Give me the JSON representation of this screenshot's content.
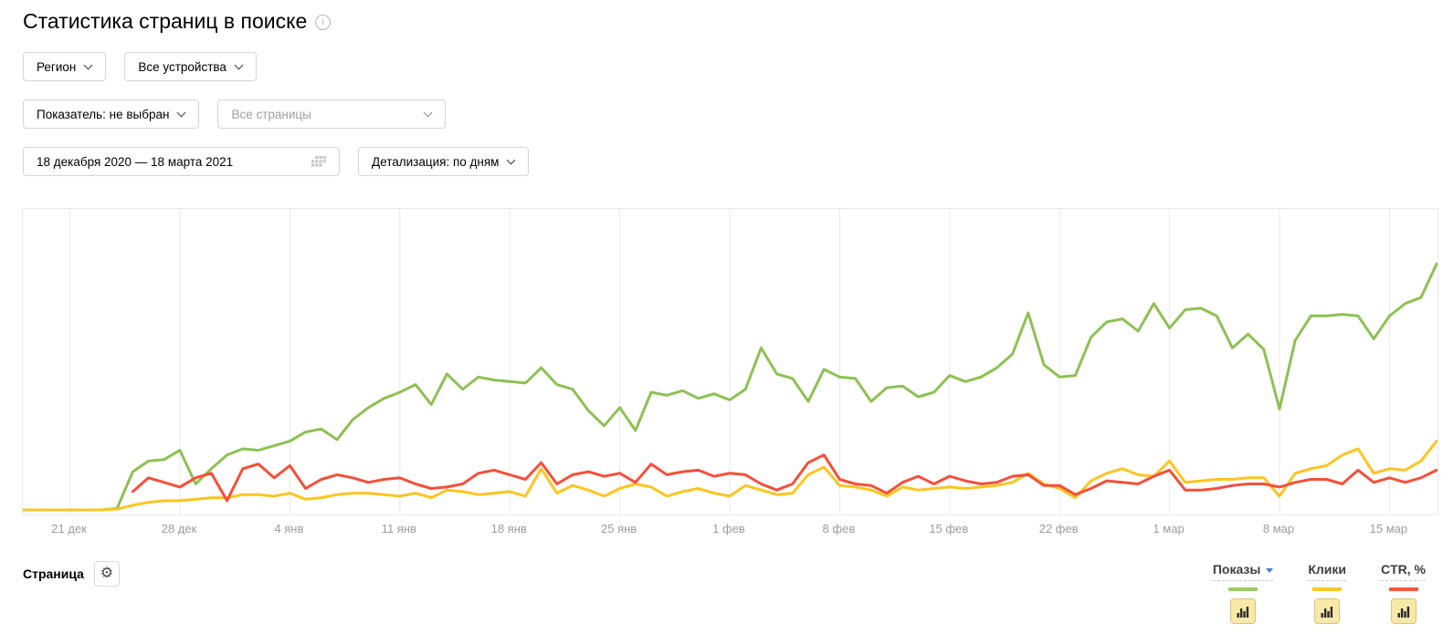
{
  "page": {
    "title": "Статистика страниц в поиске"
  },
  "filters": {
    "region_label": "Регион",
    "devices_label": "Все устройства",
    "indicator_label": "Показатель: не выбран",
    "pages_placeholder": "Все страницы",
    "date_range": "18 декабря 2020 — 18 марта 2021",
    "detail_label": "Детализация: по дням"
  },
  "table": {
    "page_column": "Страница",
    "columns": [
      {
        "key": "impressions",
        "label": "Показы",
        "color": "#9bcc60",
        "sorted": true
      },
      {
        "key": "clicks",
        "label": "Клики",
        "color": "#ffc824",
        "sorted": false
      },
      {
        "key": "ctr",
        "label": "CTR, %",
        "color": "#f4583c",
        "sorted": false
      }
    ]
  },
  "chart_data": {
    "type": "line",
    "title": "",
    "xlabel": "",
    "ylabel": "",
    "grid": "vertical-weekly",
    "legend_position": "bottom-right-table-header",
    "x_range_dates": [
      "2020-12-18",
      "2021-03-18"
    ],
    "value_scale": "relative 0-100 (no y-axis labels shown in UI)",
    "x_ticks": [
      {
        "day": 3,
        "label": "21 дек"
      },
      {
        "day": 10,
        "label": "28 дек"
      },
      {
        "day": 17,
        "label": "4 янв"
      },
      {
        "day": 24,
        "label": "11 янв"
      },
      {
        "day": 31,
        "label": "18 янв"
      },
      {
        "day": 38,
        "label": "25 янв"
      },
      {
        "day": 45,
        "label": "1 фев"
      },
      {
        "day": 52,
        "label": "8 фев"
      },
      {
        "day": 59,
        "label": "15 фев"
      },
      {
        "day": 66,
        "label": "22 фев"
      },
      {
        "day": 73,
        "label": "1 мар"
      },
      {
        "day": 80,
        "label": "8 мар"
      },
      {
        "day": 87,
        "label": "15 мар"
      }
    ],
    "series": [
      {
        "name": "Показы",
        "color": "#8dc153",
        "values": [
          1.5,
          1.5,
          1.5,
          1.5,
          1.5,
          1.5,
          2,
          14,
          17.5,
          18,
          21,
          10,
          15,
          19.5,
          21.5,
          21,
          22.5,
          24,
          27,
          28,
          24.5,
          31,
          35,
          38,
          40,
          42.5,
          36,
          46,
          41,
          45,
          44,
          43.5,
          43,
          48,
          42.5,
          41,
          34,
          29,
          35,
          27.5,
          40,
          39,
          40.5,
          38,
          39.5,
          37.5,
          41,
          54.5,
          46,
          44.5,
          37,
          47.5,
          45,
          44.5,
          37,
          41.5,
          42,
          38.5,
          40,
          45.5,
          43.5,
          45,
          48,
          52.5,
          66,
          49,
          45,
          45.5,
          58,
          63,
          64,
          60,
          69,
          61,
          67,
          67.5,
          65,
          54.5,
          59,
          54,
          34.5,
          57,
          65,
          65,
          65.5,
          65,
          57.5,
          65,
          69,
          71,
          82
        ]
      },
      {
        "name": "Клики",
        "color": "#fdc521",
        "values": [
          1.5,
          1.5,
          1.5,
          1.5,
          1.5,
          1.5,
          1.8,
          3,
          4,
          4.5,
          4.5,
          5,
          5.5,
          5.5,
          6.5,
          6.5,
          6,
          7,
          5,
          5.5,
          6.5,
          7,
          7,
          6.5,
          6,
          7,
          5.5,
          8,
          7.5,
          6.5,
          7,
          7.5,
          6,
          15,
          7,
          9.5,
          8,
          6,
          8.5,
          10,
          9,
          6,
          7.5,
          8.5,
          7,
          6,
          9.5,
          8,
          6.5,
          7,
          13,
          15.5,
          9.5,
          9,
          8,
          6,
          9,
          8,
          8.5,
          9,
          8.5,
          9,
          9.5,
          10.5,
          13.5,
          10,
          8.5,
          5.5,
          11,
          13.5,
          15,
          13,
          12.5,
          17.5,
          10.5,
          11,
          11.5,
          11.5,
          12,
          12,
          6,
          13.5,
          15,
          16,
          19.5,
          21.5,
          13.5,
          15,
          14.5,
          17.5,
          24
        ]
      },
      {
        "name": "CTR, %",
        "color": "#f4503a",
        "values": [
          null,
          null,
          null,
          null,
          null,
          null,
          null,
          7.5,
          12,
          10.5,
          9,
          12,
          13.5,
          4.5,
          15,
          16.5,
          12,
          16,
          8.5,
          11.5,
          13,
          12,
          10.5,
          11.5,
          12,
          10,
          8.5,
          9,
          10,
          13.5,
          14.5,
          13,
          11.5,
          17,
          10,
          13,
          14,
          12.5,
          13.5,
          10.5,
          16.5,
          13,
          14,
          14.5,
          12.5,
          13.5,
          13,
          10,
          8,
          10,
          17,
          19.5,
          11.5,
          10,
          9.5,
          7,
          10.5,
          12.5,
          10,
          12.5,
          11,
          10,
          10.5,
          12.5,
          13,
          9.5,
          9.5,
          6.5,
          8.5,
          11,
          10.5,
          10,
          12.5,
          14.5,
          8,
          8,
          8.5,
          9.5,
          10,
          10,
          9,
          10.5,
          11.5,
          11.5,
          10,
          14.5,
          10.5,
          12,
          10.5,
          12,
          14.5
        ]
      }
    ]
  },
  "colors": {
    "grid": "#e9e9e9",
    "axis_text": "#9b9b9b",
    "sort_arrow_blue": "#4180d0",
    "metric_button_bg": "#f8e9a8",
    "metric_button_border": "#ddc178"
  }
}
